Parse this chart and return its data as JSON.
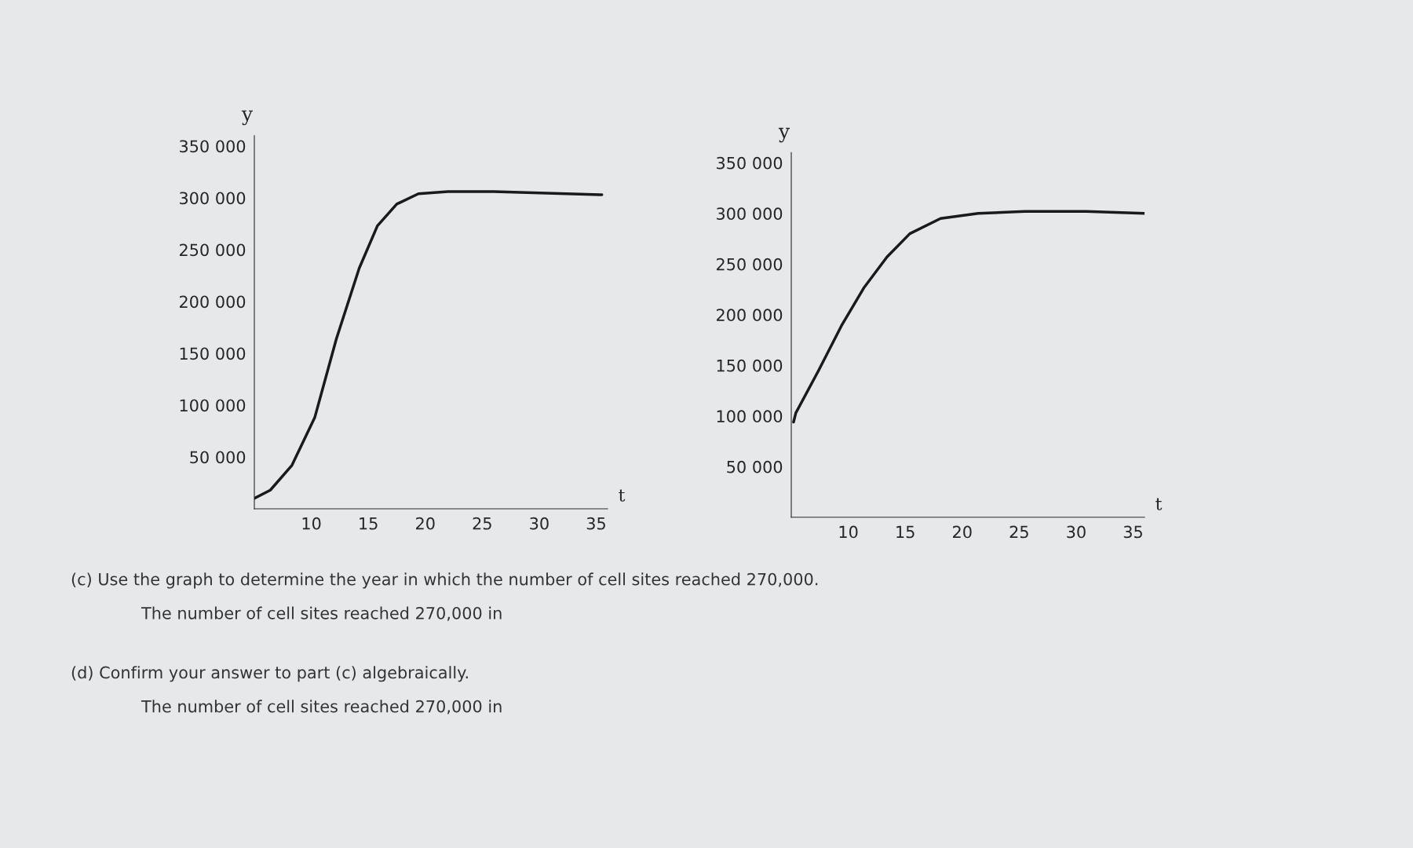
{
  "chart_data": [
    {
      "type": "line",
      "ylabel": "y",
      "xlabel": "t",
      "xlim": [
        5,
        36
      ],
      "ylim": [
        0,
        360000
      ],
      "xticks": [
        10,
        15,
        20,
        25,
        30,
        35
      ],
      "yticks": [
        {
          "value": 50000,
          "label": "50 000"
        },
        {
          "value": 100000,
          "label": "100 000"
        },
        {
          "value": 150000,
          "label": "150 000"
        },
        {
          "value": 200000,
          "label": "200 000"
        },
        {
          "value": 250000,
          "label": "250 000"
        },
        {
          "value": 300000,
          "label": "300 000"
        },
        {
          "value": 350000,
          "label": "350 000"
        }
      ],
      "grid": false,
      "legend": false,
      "series": [
        {
          "color": "#1a1a1a",
          "x": [
            5,
            6.4,
            8.3,
            10.3,
            12.2,
            14.2,
            15.8,
            17.5,
            19.4,
            22,
            26,
            35.5
          ],
          "values": [
            10000,
            18000,
            42000,
            88000,
            164000,
            232000,
            273000,
            294000,
            304000,
            306000,
            306000,
            303000
          ]
        }
      ]
    },
    {
      "type": "line",
      "ylabel": "y",
      "xlabel": "t",
      "xlim": [
        5,
        36
      ],
      "ylim": [
        0,
        360000
      ],
      "xticks": [
        10,
        15,
        20,
        25,
        30,
        35
      ],
      "yticks": [
        {
          "value": 50000,
          "label": "50 000"
        },
        {
          "value": 100000,
          "label": "100 000"
        },
        {
          "value": 150000,
          "label": "150 000"
        },
        {
          "value": 200000,
          "label": "200 000"
        },
        {
          "value": 250000,
          "label": "250 000"
        },
        {
          "value": 300000,
          "label": "300 000"
        },
        {
          "value": 350000,
          "label": "350 000"
        }
      ],
      "grid": false,
      "legend": false,
      "series": [
        {
          "color": "#1a1a1a",
          "x": [
            5.2,
            5.4,
            7.4,
            9.4,
            11.4,
            13.4,
            15.4,
            18.1,
            21.4,
            25.5,
            30.9,
            36
          ],
          "values": [
            94000,
            103000,
            145000,
            189000,
            227000,
            257000,
            280000,
            295000,
            300000,
            302000,
            302000,
            300000
          ]
        }
      ]
    },
    {
      "type": "other",
      "annotations": [
        "(c) Use the graph to determine the year in which the number of cell sites reached 270,000.",
        "The number of cell sites reached 270,000 in",
        "(d) Confirm your answer to part (c) algebraically.",
        "The number of cell sites reached 270,000 in"
      ]
    }
  ]
}
